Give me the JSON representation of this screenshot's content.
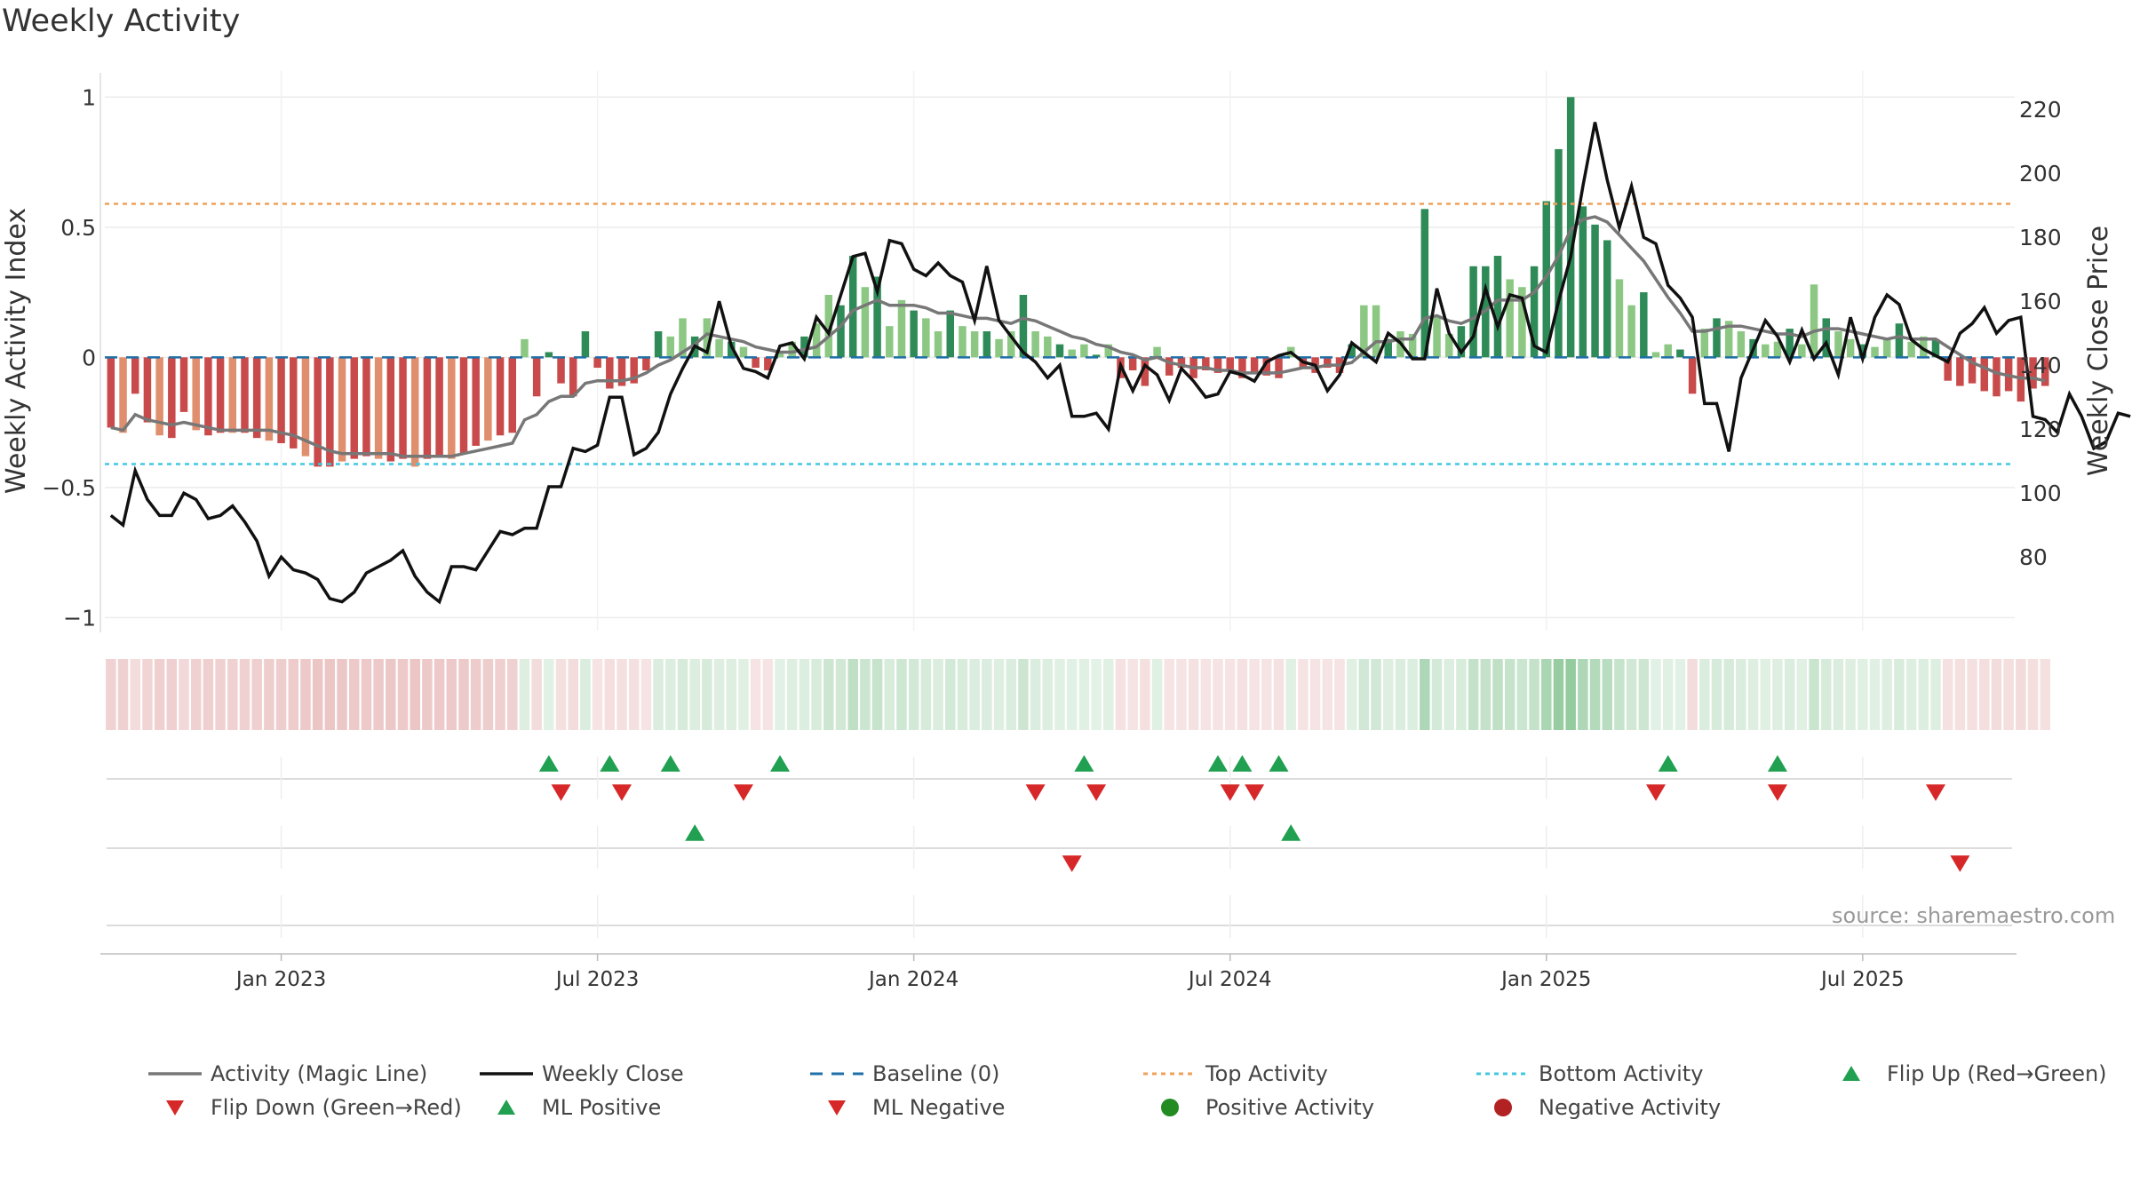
{
  "title": "Weekly Activity",
  "source": "source: sharemaestro.com",
  "colors": {
    "red_dark": "#c94a4a",
    "red_light": "#e08f6e",
    "green_dark": "#2e8b57",
    "green_light": "#8cc884",
    "magic": "#777777",
    "close": "#111111",
    "baseline": "#1f6fa8",
    "top": "#f0a05a",
    "bottom": "#40c8e0",
    "flip_up": "#20a050",
    "flip_down": "#d62828",
    "pos_dot": "#228b22",
    "neg_dot": "#b22222"
  },
  "chart_data": {
    "type": "bar",
    "title": "Weekly Activity",
    "ylabel_left": "Weekly Activity Index",
    "ylabel_right": "Weekly Close Price",
    "left_ticks": [
      1,
      0.5,
      0,
      -0.5,
      -1
    ],
    "left_tick_labels": [
      "1",
      "0.5",
      "0",
      "−0.5",
      "−1"
    ],
    "right_ticks": [
      220,
      200,
      180,
      160,
      140,
      120,
      100,
      80
    ],
    "ylim_left": [
      -1.05,
      1.1
    ],
    "ylim_right": [
      57,
      232
    ],
    "top_activity": 0.59,
    "bottom_activity": -0.41,
    "x_labels": [
      {
        "label": "Jan 2023",
        "week": 14
      },
      {
        "label": "Jul 2023",
        "week": 40
      },
      {
        "label": "Jan 2024",
        "week": 66
      },
      {
        "label": "Jul 2024",
        "week": 92
      },
      {
        "label": "Jan 2025",
        "week": 118
      },
      {
        "label": "Jul 2025",
        "week": 144
      }
    ],
    "activity": [
      -0.27,
      -0.29,
      -0.14,
      -0.25,
      -0.3,
      -0.31,
      -0.21,
      -0.28,
      -0.3,
      -0.29,
      -0.29,
      -0.29,
      -0.31,
      -0.32,
      -0.33,
      -0.35,
      -0.38,
      -0.42,
      -0.42,
      -0.4,
      -0.39,
      -0.38,
      -0.39,
      -0.4,
      -0.39,
      -0.42,
      -0.39,
      -0.38,
      -0.39,
      -0.37,
      -0.34,
      -0.32,
      -0.3,
      -0.29,
      0.07,
      -0.15,
      0.02,
      -0.1,
      -0.15,
      0.1,
      -0.04,
      -0.12,
      -0.11,
      -0.1,
      -0.05,
      0.1,
      0.08,
      0.15,
      0.08,
      0.15,
      0.07,
      0.06,
      0.04,
      -0.04,
      -0.05,
      0.02,
      0.06,
      0.08,
      0.13,
      0.24,
      0.2,
      0.39,
      0.27,
      0.31,
      0.12,
      0.22,
      0.18,
      0.15,
      0.1,
      0.18,
      0.12,
      0.1,
      0.1,
      0.07,
      0.1,
      0.24,
      0.1,
      0.08,
      0.05,
      0.03,
      0.05,
      0.01,
      0.05,
      -0.08,
      -0.05,
      -0.11,
      0.04,
      -0.07,
      -0.04,
      -0.08,
      -0.05,
      -0.06,
      -0.05,
      -0.08,
      -0.06,
      -0.07,
      -0.08,
      0.04,
      -0.04,
      -0.06,
      -0.04,
      -0.06,
      0.05,
      0.2,
      0.2,
      0.07,
      0.1,
      0.09,
      0.57,
      0.16,
      0.09,
      0.12,
      0.35,
      0.35,
      0.39,
      0.3,
      0.27,
      0.35,
      0.6,
      0.8,
      1.0,
      0.58,
      0.51,
      0.45,
      0.3,
      0.2,
      0.25,
      0.02,
      0.05,
      0.03,
      -0.14,
      0.11,
      0.15,
      0.14,
      0.1,
      0.07,
      0.05,
      0.06,
      0.11,
      0.05,
      0.28,
      0.15,
      0.1,
      0.07,
      0.05,
      0.04,
      0.07,
      0.13,
      0.06,
      0.08,
      0.07,
      -0.09,
      -0.11,
      -0.1,
      -0.13,
      -0.15,
      -0.13,
      -0.17,
      -0.12,
      -0.11
    ],
    "magic_line": [
      -0.27,
      -0.28,
      -0.22,
      -0.24,
      -0.25,
      -0.26,
      -0.25,
      -0.26,
      -0.27,
      -0.28,
      -0.28,
      -0.28,
      -0.28,
      -0.28,
      -0.29,
      -0.3,
      -0.32,
      -0.34,
      -0.36,
      -0.37,
      -0.37,
      -0.37,
      -0.37,
      -0.37,
      -0.38,
      -0.38,
      -0.38,
      -0.38,
      -0.38,
      -0.37,
      -0.36,
      -0.35,
      -0.34,
      -0.33,
      -0.24,
      -0.22,
      -0.17,
      -0.15,
      -0.15,
      -0.1,
      -0.09,
      -0.09,
      -0.09,
      -0.08,
      -0.06,
      -0.03,
      -0.01,
      0.02,
      0.05,
      0.09,
      0.08,
      0.07,
      0.06,
      0.04,
      0.03,
      0.02,
      0.02,
      0.03,
      0.04,
      0.08,
      0.12,
      0.18,
      0.2,
      0.22,
      0.2,
      0.2,
      0.2,
      0.19,
      0.17,
      0.17,
      0.16,
      0.15,
      0.15,
      0.14,
      0.13,
      0.15,
      0.14,
      0.12,
      0.1,
      0.08,
      0.07,
      0.05,
      0.04,
      0.02,
      0.01,
      -0.01,
      0.0,
      -0.02,
      -0.03,
      -0.04,
      -0.04,
      -0.05,
      -0.05,
      -0.06,
      -0.06,
      -0.06,
      -0.06,
      -0.05,
      -0.04,
      -0.04,
      -0.03,
      -0.03,
      -0.02,
      0.02,
      0.06,
      0.06,
      0.07,
      0.07,
      0.15,
      0.16,
      0.14,
      0.13,
      0.15,
      0.18,
      0.22,
      0.22,
      0.22,
      0.25,
      0.31,
      0.39,
      0.49,
      0.53,
      0.54,
      0.52,
      0.47,
      0.42,
      0.37,
      0.3,
      0.23,
      0.17,
      0.1,
      0.1,
      0.11,
      0.12,
      0.12,
      0.11,
      0.1,
      0.09,
      0.09,
      0.08,
      0.1,
      0.11,
      0.11,
      0.1,
      0.09,
      0.08,
      0.07,
      0.08,
      0.07,
      0.07,
      0.07,
      0.04,
      0.01,
      -0.02,
      -0.04,
      -0.06,
      -0.07,
      -0.08,
      -0.08,
      -0.09
    ],
    "weekly_close": [
      93,
      90,
      107,
      98,
      93,
      93,
      100,
      98,
      92,
      93,
      96,
      91,
      85,
      74,
      80,
      76,
      75,
      73,
      67,
      66,
      69,
      75,
      77,
      79,
      82,
      74,
      69,
      66,
      77,
      77,
      76,
      82,
      88,
      87,
      89,
      89,
      102,
      102,
      114,
      113,
      115,
      130,
      130,
      112,
      114,
      119,
      131,
      139,
      146,
      144,
      160,
      146,
      139,
      138,
      136,
      146,
      147,
      142,
      155,
      150,
      162,
      174,
      175,
      163,
      179,
      178,
      170,
      168,
      172,
      168,
      166,
      154,
      171,
      154,
      149,
      144,
      141,
      136,
      140,
      124,
      124,
      125,
      120,
      140,
      132,
      140,
      137,
      129,
      139,
      135,
      130,
      131,
      138,
      137,
      135,
      141,
      143,
      144,
      141,
      140,
      132,
      137,
      147,
      144,
      141,
      150,
      147,
      142,
      142,
      164,
      150,
      144,
      149,
      164,
      152,
      162,
      161,
      146,
      144,
      160,
      174,
      196,
      216,
      198,
      183,
      196,
      180,
      178,
      165,
      161,
      155,
      128,
      128,
      113,
      136,
      145,
      154,
      149,
      141,
      151,
      142,
      147,
      137,
      155,
      142,
      155,
      162,
      159,
      148,
      145,
      143,
      141,
      150,
      153,
      158,
      150,
      154,
      155,
      124,
      123,
      119,
      131,
      124,
      114,
      116,
      125,
      124
    ],
    "flips_row1_up": [
      36,
      41,
      46,
      55,
      80,
      91,
      93,
      96,
      128,
      137
    ],
    "flips_row1_down": [
      37,
      42,
      52,
      76,
      81,
      92,
      94,
      127,
      137,
      150
    ],
    "flips_row2_up": [
      48,
      97
    ],
    "flips_row2_down": [
      79,
      152
    ],
    "x_week_start": 0,
    "x_week_end": 156
  },
  "legend": [
    {
      "label": "Activity (Magic Line)",
      "sym": "line-gray"
    },
    {
      "label": "Weekly Close",
      "sym": "line-black"
    },
    {
      "label": "Baseline (0)",
      "sym": "dash-blue"
    },
    {
      "label": "Top Activity",
      "sym": "dot-orange"
    },
    {
      "label": "Bottom Activity",
      "sym": "dot-cyan"
    },
    {
      "label": "Flip Up (Red→Green)",
      "sym": "tri-up"
    },
    {
      "label": "Flip Down (Green→Red)",
      "sym": "tri-down"
    },
    {
      "label": "ML Positive",
      "sym": "tri-up"
    },
    {
      "label": "ML Negative",
      "sym": "tri-down"
    },
    {
      "label": "Positive Activity",
      "sym": "circle-green"
    },
    {
      "label": "Negative Activity",
      "sym": "circle-red"
    }
  ]
}
